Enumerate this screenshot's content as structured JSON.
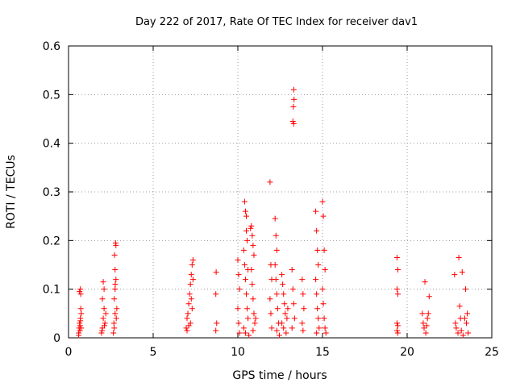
{
  "chart_data": {
    "type": "scatter",
    "title": "Day 222 of 2017, Rate Of TEC Index for receiver dav1",
    "xlabel": "GPS time / hours",
    "ylabel": "ROTI / TECUs",
    "xlim": [
      0,
      25
    ],
    "ylim": [
      0,
      0.6
    ],
    "x_ticks": [
      0,
      5,
      10,
      15,
      20,
      25
    ],
    "y_ticks": [
      0,
      0.1,
      0.2,
      0.3,
      0.4,
      0.5,
      0.6
    ],
    "x_tick_labels": [
      "0",
      "5",
      "10",
      "15",
      "20",
      "25"
    ],
    "y_tick_labels": [
      "0",
      "0.1",
      "0.2",
      "0.3",
      "0.4",
      "0.5",
      "0.6"
    ],
    "grid": true,
    "marker": "+",
    "series": [
      {
        "points": [
          [
            0.6,
            0.01
          ],
          [
            0.62,
            0.02
          ],
          [
            0.65,
            0.03
          ],
          [
            0.67,
            0.015
          ],
          [
            0.7,
            0.04
          ],
          [
            0.72,
            0.06
          ],
          [
            0.75,
            0.05
          ],
          [
            0.65,
            0.095
          ],
          [
            0.7,
            0.1
          ],
          [
            0.72,
            0.09
          ],
          [
            0.6,
            0.005
          ],
          [
            0.75,
            0.02
          ],
          [
            0.7,
            0.035
          ],
          [
            0.68,
            0.025
          ],
          [
            1.95,
            0.01
          ],
          [
            2.0,
            0.02
          ],
          [
            2.05,
            0.04
          ],
          [
            2.1,
            0.06
          ],
          [
            2.15,
            0.03
          ],
          [
            2.0,
            0.08
          ],
          [
            2.1,
            0.1
          ],
          [
            2.05,
            0.115
          ],
          [
            2.2,
            0.05
          ],
          [
            1.98,
            0.015
          ],
          [
            2.12,
            0.025
          ],
          [
            2.65,
            0.01
          ],
          [
            2.7,
            0.02
          ],
          [
            2.75,
            0.05
          ],
          [
            2.7,
            0.08
          ],
          [
            2.75,
            0.1
          ],
          [
            2.8,
            0.12
          ],
          [
            2.75,
            0.14
          ],
          [
            2.72,
            0.17
          ],
          [
            2.8,
            0.19
          ],
          [
            2.78,
            0.195
          ],
          [
            2.85,
            0.06
          ],
          [
            2.68,
            0.03
          ],
          [
            2.82,
            0.04
          ],
          [
            2.76,
            0.11
          ],
          [
            6.95,
            0.02
          ],
          [
            7.0,
            0.04
          ],
          [
            7.05,
            0.05
          ],
          [
            7.1,
            0.07
          ],
          [
            7.15,
            0.09
          ],
          [
            7.2,
            0.11
          ],
          [
            7.25,
            0.13
          ],
          [
            7.3,
            0.15
          ],
          [
            7.35,
            0.16
          ],
          [
            7.2,
            0.03
          ],
          [
            7.3,
            0.06
          ],
          [
            7.1,
            0.025
          ],
          [
            7.25,
            0.08
          ],
          [
            7.35,
            0.12
          ],
          [
            7.0,
            0.015
          ],
          [
            8.7,
            0.015
          ],
          [
            8.75,
            0.03
          ],
          [
            8.7,
            0.09
          ],
          [
            8.72,
            0.135
          ],
          [
            10.0,
            0.16
          ],
          [
            10.05,
            0.13
          ],
          [
            10.1,
            0.1
          ],
          [
            10.0,
            0.06
          ],
          [
            10.05,
            0.03
          ],
          [
            10.1,
            0.01
          ],
          [
            10.4,
            0.28
          ],
          [
            10.45,
            0.26
          ],
          [
            10.5,
            0.22
          ],
          [
            10.55,
            0.2
          ],
          [
            10.35,
            0.18
          ],
          [
            10.4,
            0.15
          ],
          [
            10.45,
            0.12
          ],
          [
            10.5,
            0.09
          ],
          [
            10.55,
            0.06
          ],
          [
            10.6,
            0.04
          ],
          [
            10.35,
            0.02
          ],
          [
            10.45,
            0.01
          ],
          [
            10.65,
            0.005
          ],
          [
            10.6,
            0.14
          ],
          [
            10.5,
            0.25
          ],
          [
            10.8,
            0.23
          ],
          [
            10.85,
            0.21
          ],
          [
            10.9,
            0.19
          ],
          [
            10.95,
            0.17
          ],
          [
            10.8,
            0.14
          ],
          [
            10.85,
            0.11
          ],
          [
            10.9,
            0.08
          ],
          [
            10.95,
            0.05
          ],
          [
            11.0,
            0.03
          ],
          [
            10.9,
            0.015
          ],
          [
            11.05,
            0.04
          ],
          [
            10.75,
            0.225
          ],
          [
            11.9,
            0.32
          ],
          [
            11.95,
            0.15
          ],
          [
            12.0,
            0.12
          ],
          [
            11.9,
            0.08
          ],
          [
            11.95,
            0.05
          ],
          [
            12.0,
            0.02
          ],
          [
            12.2,
            0.245
          ],
          [
            12.25,
            0.21
          ],
          [
            12.3,
            0.18
          ],
          [
            12.2,
            0.15
          ],
          [
            12.25,
            0.12
          ],
          [
            12.3,
            0.09
          ],
          [
            12.35,
            0.06
          ],
          [
            12.4,
            0.03
          ],
          [
            12.3,
            0.015
          ],
          [
            12.45,
            0.005
          ],
          [
            12.6,
            0.13
          ],
          [
            12.65,
            0.11
          ],
          [
            12.7,
            0.09
          ],
          [
            12.75,
            0.07
          ],
          [
            12.8,
            0.05
          ],
          [
            12.6,
            0.03
          ],
          [
            12.7,
            0.02
          ],
          [
            12.85,
            0.01
          ],
          [
            12.9,
            0.04
          ],
          [
            12.95,
            0.06
          ],
          [
            13.3,
            0.51
          ],
          [
            13.32,
            0.49
          ],
          [
            13.28,
            0.475
          ],
          [
            13.25,
            0.445
          ],
          [
            13.3,
            0.44
          ],
          [
            13.2,
            0.14
          ],
          [
            13.25,
            0.1
          ],
          [
            13.3,
            0.07
          ],
          [
            13.35,
            0.04
          ],
          [
            13.2,
            0.02
          ],
          [
            13.8,
            0.12
          ],
          [
            13.85,
            0.09
          ],
          [
            13.9,
            0.06
          ],
          [
            13.8,
            0.03
          ],
          [
            13.85,
            0.015
          ],
          [
            14.6,
            0.26
          ],
          [
            14.65,
            0.22
          ],
          [
            14.7,
            0.18
          ],
          [
            14.75,
            0.15
          ],
          [
            14.6,
            0.12
          ],
          [
            14.65,
            0.09
          ],
          [
            14.7,
            0.06
          ],
          [
            14.75,
            0.04
          ],
          [
            14.8,
            0.02
          ],
          [
            14.65,
            0.01
          ],
          [
            15.0,
            0.28
          ],
          [
            15.05,
            0.25
          ],
          [
            15.1,
            0.18
          ],
          [
            15.15,
            0.14
          ],
          [
            15.0,
            0.1
          ],
          [
            15.05,
            0.07
          ],
          [
            15.1,
            0.04
          ],
          [
            15.15,
            0.02
          ],
          [
            15.2,
            0.01
          ],
          [
            19.4,
            0.165
          ],
          [
            19.45,
            0.14
          ],
          [
            19.4,
            0.1
          ],
          [
            19.45,
            0.09
          ],
          [
            19.4,
            0.03
          ],
          [
            19.45,
            0.025
          ],
          [
            19.4,
            0.015
          ],
          [
            19.45,
            0.01
          ],
          [
            20.9,
            0.05
          ],
          [
            20.95,
            0.03
          ],
          [
            21.0,
            0.02
          ],
          [
            21.05,
            0.115
          ],
          [
            21.1,
            0.01
          ],
          [
            21.2,
            0.04
          ],
          [
            21.25,
            0.05
          ],
          [
            21.3,
            0.085
          ],
          [
            21.15,
            0.025
          ],
          [
            22.8,
            0.13
          ],
          [
            22.85,
            0.03
          ],
          [
            22.9,
            0.02
          ],
          [
            23.0,
            0.01
          ],
          [
            23.05,
            0.165
          ],
          [
            23.1,
            0.065
          ],
          [
            23.15,
            0.04
          ],
          [
            23.2,
            0.015
          ],
          [
            23.25,
            0.135
          ],
          [
            23.4,
            0.04
          ],
          [
            23.45,
            0.1
          ],
          [
            23.5,
            0.03
          ],
          [
            23.55,
            0.05
          ],
          [
            23.6,
            0.01
          ],
          [
            23.3,
            0.005
          ]
        ]
      }
    ],
    "color": "#ff0000"
  }
}
